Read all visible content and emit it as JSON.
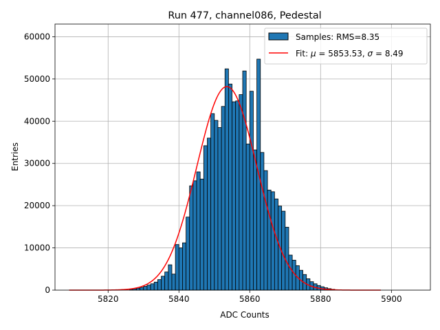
{
  "chart_data": {
    "type": "bar",
    "title": "Run 477, channel086, Pedestal",
    "xlabel": "ADC Counts",
    "ylabel": "Entries",
    "xlim": [
      5805,
      5911
    ],
    "ylim": [
      0,
      63000
    ],
    "xticks": [
      5820,
      5840,
      5860,
      5880,
      5900
    ],
    "yticks": [
      0,
      10000,
      20000,
      30000,
      40000,
      50000,
      60000
    ],
    "grid": true,
    "legend_position": "top-right",
    "bar_color": "#1f77b4",
    "bar_edge_color": "#000000",
    "fit_color": "#ff0000",
    "histogram": {
      "name": "Samples: RMS=8.35",
      "bin_width": 1,
      "bin_start": 5826,
      "counts": [
        200,
        300,
        450,
        650,
        900,
        1200,
        1500,
        1900,
        2500,
        3300,
        4300,
        6000,
        3800,
        10800,
        10000,
        11200,
        17300,
        24700,
        25900,
        28000,
        26300,
        34200,
        36000,
        41800,
        40200,
        38500,
        43500,
        52400,
        48800,
        44600,
        44800,
        46300,
        51900,
        34600,
        47100,
        33200,
        54700,
        32600,
        28300,
        23700,
        23300,
        21600,
        19900,
        18700,
        14900,
        8300,
        7100,
        5800,
        4700,
        3700,
        2700,
        2000,
        1500,
        1100,
        800,
        550,
        350,
        200
      ]
    },
    "fit": {
      "name_prefix": "Fit: ",
      "mu_symbol": "μ",
      "sigma_symbol": "σ",
      "mu": 5853.53,
      "sigma": 8.49,
      "amplitude": 48200,
      "x_range": [
        5809,
        5897
      ]
    }
  }
}
